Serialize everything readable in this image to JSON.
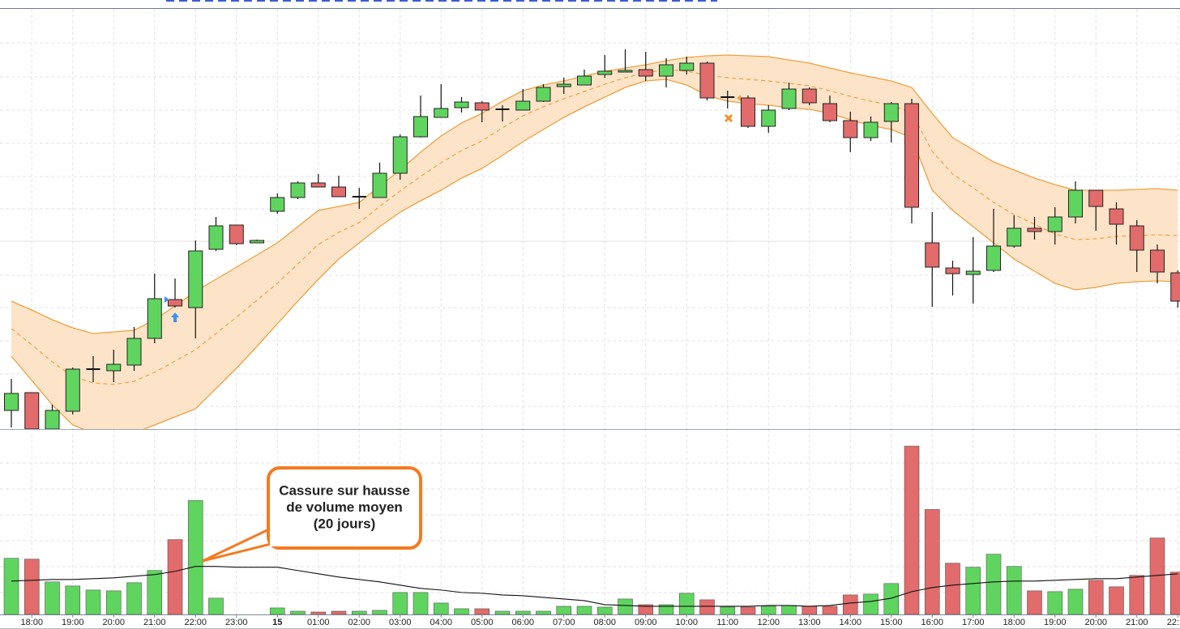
{
  "chart_data": [
    {
      "type": "candlestick",
      "open": [
        23,
        45,
        0,
        22,
        74,
        72,
        79,
        112,
        160,
        150,
        222,
        252,
        230,
        269,
        286,
        304,
        299,
        287,
        286,
        316,
        361,
        385,
        397,
        403,
        395,
        394,
        405,
        423,
        425,
        438,
        441,
        444,
        436,
        443,
        452,
        410,
        409,
        374,
        396,
        420,
        402,
        381,
        360,
        380,
        402,
        230,
        199,
        191,
        196,
        226,
        248,
        244,
        262,
        295,
        272,
        251,
        221,
        193
      ],
      "close": [
        44,
        0,
        23,
        74,
        74,
        80,
        112,
        161,
        152,
        220,
        251,
        229,
        233,
        286,
        304,
        299,
        287,
        287,
        316,
        361,
        386,
        396,
        404,
        394,
        395,
        405,
        422,
        426,
        436,
        442,
        443,
        436,
        450,
        452,
        409,
        410,
        374,
        394,
        420,
        403,
        381,
        360,
        379,
        402,
        274,
        200,
        192,
        195,
        226,
        248,
        244,
        262,
        295,
        275,
        253,
        221,
        194,
        158
      ],
      "high": [
        62,
        45,
        30,
        76,
        90,
        98,
        126,
        192,
        186,
        233,
        262,
        252,
        234,
        291,
        306,
        315,
        313,
        298,
        329,
        364,
        412,
        426,
        410,
        405,
        400,
        420,
        426,
        434,
        444,
        462,
        469,
        466,
        458,
        460,
        454,
        418,
        412,
        400,
        428,
        422,
        412,
        392,
        386,
        404,
        408,
        268,
        208,
        237,
        272,
        264,
        262,
        274,
        306,
        295,
        280,
        258,
        228,
        196
      ],
      "low": [
        2,
        0,
        0,
        18,
        58,
        58,
        72,
        106,
        150,
        112,
        220,
        227,
        230,
        266,
        284,
        299,
        287,
        272,
        286,
        308,
        360,
        385,
        391,
        379,
        380,
        394,
        404,
        414,
        425,
        434,
        441,
        430,
        422,
        438,
        406,
        396,
        372,
        366,
        394,
        400,
        379,
        342,
        356,
        354,
        254,
        151,
        165,
        155,
        194,
        224,
        234,
        228,
        254,
        245,
        228,
        194,
        180,
        150
      ],
      "up_color": "#5fd55f",
      "down_color": "#e26b6b",
      "bands": {
        "upper": [
          158,
          147,
          135,
          125,
          118,
          120,
          122,
          135,
          152,
          170,
          185,
          200,
          215,
          230,
          250,
          270,
          275,
          280,
          300,
          320,
          342,
          362,
          378,
          390,
          405,
          418,
          425,
          430,
          436,
          442,
          446,
          450,
          455,
          459,
          461,
          462,
          461,
          460,
          456,
          452,
          446,
          440,
          435,
          430,
          422,
          390,
          360,
          345,
          330,
          320,
          310,
          302,
          295,
          295,
          295,
          296,
          297,
          295
        ],
        "middle": [
          124,
          104,
          83,
          65,
          57,
          55,
          59,
          70,
          84,
          98,
          118,
          138,
          159,
          180,
          204,
          228,
          243,
          255,
          275,
          294,
          312,
          329,
          344,
          356,
          372,
          387,
          398,
          408,
          417,
          426,
          434,
          440,
          444,
          442,
          437,
          434,
          432,
          430,
          427,
          424,
          418,
          411,
          405,
          400,
          391,
          343,
          315,
          298,
          280,
          265,
          253,
          241,
          234,
          235,
          238,
          239,
          240,
          239
        ],
        "lower": [
          90,
          60,
          30,
          5,
          -5,
          -10,
          -5,
          5,
          15,
          25,
          50,
          75,
          102,
          130,
          158,
          185,
          210,
          230,
          250,
          268,
          282,
          295,
          310,
          322,
          338,
          355,
          370,
          385,
          398,
          410,
          422,
          430,
          432,
          425,
          412,
          405,
          402,
          400,
          397,
          395,
          390,
          382,
          375,
          370,
          360,
          295,
          270,
          250,
          230,
          210,
          195,
          180,
          172,
          175,
          180,
          182,
          183,
          182
        ],
        "color": "#f0a040",
        "fill": "#fde4c8"
      },
      "ylim": [
        0,
        520
      ]
    },
    {
      "type": "bar",
      "categories": [
        null,
        "18:00",
        null,
        "19:00",
        null,
        "20:00",
        null,
        "21:00",
        null,
        "22:00",
        null,
        "23:00",
        null,
        "15",
        null,
        "01:00",
        null,
        "02:00",
        null,
        "03:00",
        null,
        "04:00",
        null,
        "05:00",
        null,
        "06:00",
        null,
        "07:00",
        null,
        "08:00",
        null,
        "09:00",
        null,
        "10:00",
        null,
        "11:00",
        null,
        "12:00",
        null,
        "13:00",
        null,
        "14:00",
        null,
        "15:00",
        null,
        "16:00",
        null,
        "17:00",
        null,
        "18:00",
        null,
        "19:00",
        null,
        "20:00",
        null,
        "21:00",
        null,
        "22:"
      ],
      "values": [
        69,
        68,
        40,
        35,
        30,
        29,
        39,
        54,
        92,
        140,
        20,
        0,
        0,
        8,
        4,
        3,
        4,
        4,
        5,
        27,
        27,
        14,
        7,
        7,
        4,
        4,
        4,
        10,
        10,
        9,
        19,
        12,
        12,
        26,
        18,
        9,
        9,
        10,
        11,
        10,
        10,
        24,
        25,
        38,
        207,
        129,
        63,
        58,
        74,
        59,
        29,
        28,
        31,
        42,
        34,
        48,
        94,
        52
      ],
      "moving_average": {
        "values": [
          41,
          42,
          43,
          43,
          44,
          45,
          47,
          49,
          53,
          59,
          59,
          58,
          58,
          58,
          54,
          50,
          46,
          43,
          40,
          36,
          32,
          30,
          27,
          26,
          24,
          23,
          21,
          19,
          17,
          12,
          11,
          10,
          10,
          10,
          10,
          10,
          10,
          11,
          11,
          10,
          11,
          14,
          16,
          20,
          28,
          33,
          36,
          38,
          40,
          41,
          41,
          42,
          43,
          44,
          44,
          46,
          48,
          50
        ],
        "color": "#111111"
      },
      "ylim": [
        0,
        220
      ],
      "annotation": {
        "lines": [
          "Cassure sur hausse",
          "de volume moyen",
          "(20 jours)"
        ],
        "color": "#f47b20"
      }
    }
  ]
}
